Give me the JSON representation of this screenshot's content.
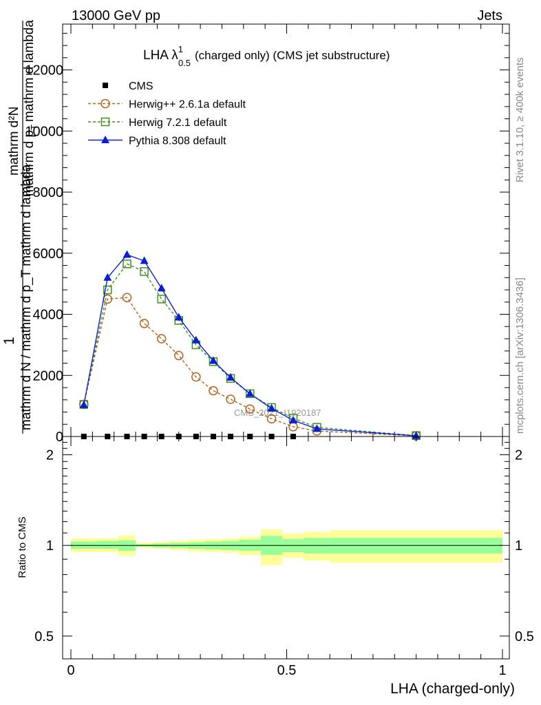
{
  "header": {
    "energy_label": "13000 GeV pp",
    "category_label": "Jets"
  },
  "side_labels": {
    "rivet": "Rivet 3.1.10, ≥ 400k events",
    "mcplots": "mcplots.cern.ch [arXiv:1306.3436]"
  },
  "chart_data": [
    {
      "type": "line",
      "title_main": "LHA λ",
      "title_sup": "1",
      "title_sub": "0.5",
      "title_rest": "(charged only) (CMS jet substructure)",
      "watermark": "CMS_2021_I1920187",
      "ylabel_numerator": "1",
      "ylabel_mid": "mathrm d N / mathrm d p_T mathrm d lambda",
      "ylabel_frac_num": "mathrm d²N",
      "ylabel_frac_den_a": "mathrm d p",
      "ylabel_frac_den_sub": "T",
      "ylabel_frac_den_b": "mathrm d lambda",
      "ylim": [
        0,
        13500
      ],
      "yticks": [
        0,
        2000,
        4000,
        6000,
        8000,
        10000,
        12000
      ],
      "ytick_labels": [
        "0",
        "2000",
        "4000",
        "6000",
        "8000",
        "10000",
        "12000"
      ],
      "xlim": [
        -0.02,
        1.0
      ],
      "legend_position": "top-left",
      "series": [
        {
          "name": "CMS",
          "marker": "square-filled",
          "color": "#000000",
          "dashed": false,
          "line": false,
          "x": [
            0.03,
            0.085,
            0.13,
            0.17,
            0.21,
            0.25,
            0.29,
            0.33,
            0.37,
            0.415,
            0.465,
            0.515
          ],
          "values": [
            0,
            0,
            0,
            0,
            0,
            0,
            0,
            0,
            0,
            0,
            0,
            0
          ]
        },
        {
          "name": "Herwig++ 2.6.1a default",
          "marker": "circle-open",
          "color": "#b8611c",
          "dashed": true,
          "line": true,
          "x": [
            0.03,
            0.085,
            0.13,
            0.17,
            0.21,
            0.25,
            0.29,
            0.33,
            0.37,
            0.415,
            0.465,
            0.515,
            0.57,
            0.8
          ],
          "values": [
            1050,
            4500,
            4550,
            3700,
            3200,
            2650,
            1950,
            1500,
            1220,
            900,
            580,
            320,
            180,
            20
          ]
        },
        {
          "name": "Herwig 7.2.1 default",
          "marker": "square-open",
          "color": "#3f8f1f",
          "dashed": true,
          "line": true,
          "x": [
            0.03,
            0.085,
            0.13,
            0.17,
            0.21,
            0.25,
            0.29,
            0.33,
            0.37,
            0.415,
            0.465,
            0.515,
            0.57,
            0.8
          ],
          "values": [
            1050,
            4800,
            5650,
            5400,
            4500,
            3800,
            3000,
            2450,
            1900,
            1400,
            950,
            600,
            300,
            30
          ]
        },
        {
          "name": "Pythia 8.308 default",
          "marker": "triangle-filled",
          "color": "#0a1ed8",
          "dashed": false,
          "line": true,
          "x": [
            0.03,
            0.085,
            0.13,
            0.17,
            0.21,
            0.25,
            0.29,
            0.33,
            0.37,
            0.415,
            0.465,
            0.515,
            0.57,
            0.8
          ],
          "values": [
            1030,
            5200,
            5950,
            5750,
            4850,
            3900,
            3150,
            2480,
            1930,
            1400,
            920,
            530,
            250,
            25
          ]
        }
      ]
    },
    {
      "type": "area",
      "ylabel": "Ratio to CMS",
      "xlabel": "LHA (charged-only)",
      "ylim": [
        0.42,
        2.3
      ],
      "yticks": [
        0.5,
        1,
        2
      ],
      "ytick_labels": [
        "0.5",
        "1",
        "2"
      ],
      "xlim": [
        -0.02,
        1.0
      ],
      "xticks": [
        0,
        0.5,
        1
      ],
      "xtick_labels": [
        "0",
        "0.5",
        "1"
      ],
      "reference_line": 1,
      "bins": [
        {
          "x_lo": 0.0,
          "x_hi": 0.06,
          "inner": [
            0.975,
            1.03
          ],
          "outer": [
            0.95,
            1.055
          ]
        },
        {
          "x_lo": 0.06,
          "x_hi": 0.11,
          "inner": [
            0.975,
            1.035
          ],
          "outer": [
            0.95,
            1.055
          ]
        },
        {
          "x_lo": 0.11,
          "x_hi": 0.15,
          "inner": [
            0.96,
            1.04
          ],
          "outer": [
            0.925,
            1.08
          ]
        },
        {
          "x_lo": 0.15,
          "x_hi": 0.19,
          "inner": [
            0.99,
            1.01
          ],
          "outer": [
            0.98,
            1.02
          ]
        },
        {
          "x_lo": 0.19,
          "x_hi": 0.23,
          "inner": [
            0.985,
            1.015
          ],
          "outer": [
            0.975,
            1.025
          ]
        },
        {
          "x_lo": 0.23,
          "x_hi": 0.27,
          "inner": [
            0.98,
            1.02
          ],
          "outer": [
            0.965,
            1.035
          ]
        },
        {
          "x_lo": 0.27,
          "x_hi": 0.31,
          "inner": [
            0.975,
            1.025
          ],
          "outer": [
            0.955,
            1.045
          ]
        },
        {
          "x_lo": 0.31,
          "x_hi": 0.35,
          "inner": [
            0.97,
            1.03
          ],
          "outer": [
            0.95,
            1.05
          ]
        },
        {
          "x_lo": 0.35,
          "x_hi": 0.39,
          "inner": [
            0.965,
            1.035
          ],
          "outer": [
            0.945,
            1.055
          ]
        },
        {
          "x_lo": 0.39,
          "x_hi": 0.44,
          "inner": [
            0.96,
            1.045
          ],
          "outer": [
            0.93,
            1.07
          ]
        },
        {
          "x_lo": 0.44,
          "x_hi": 0.49,
          "inner": [
            0.93,
            1.075
          ],
          "outer": [
            0.86,
            1.13
          ]
        },
        {
          "x_lo": 0.49,
          "x_hi": 0.54,
          "inner": [
            0.95,
            1.05
          ],
          "outer": [
            0.91,
            1.095
          ]
        },
        {
          "x_lo": 0.54,
          "x_hi": 0.6,
          "inner": [
            0.94,
            1.06
          ],
          "outer": [
            0.89,
            1.11
          ]
        },
        {
          "x_lo": 0.6,
          "x_hi": 1.0,
          "inner": [
            0.94,
            1.06
          ],
          "outer": [
            0.875,
            1.125
          ]
        }
      ]
    }
  ]
}
